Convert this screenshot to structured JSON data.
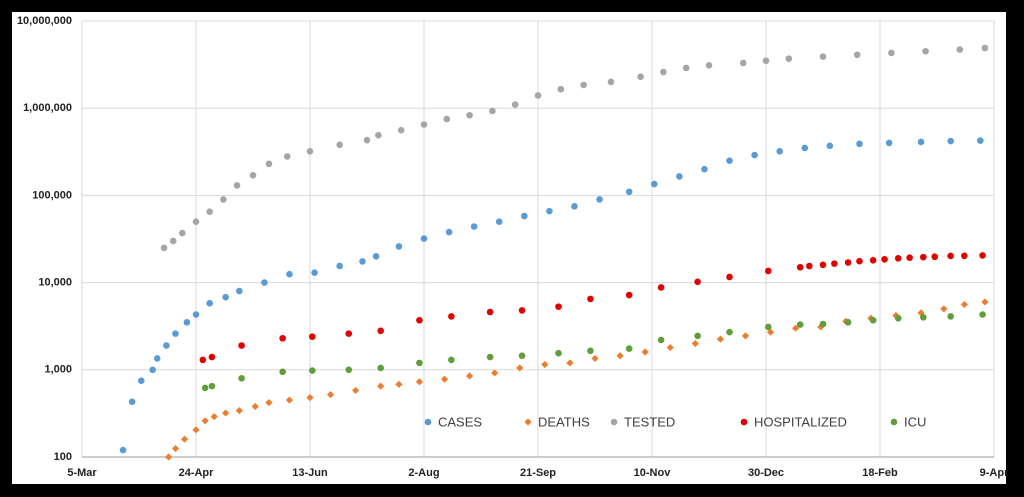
{
  "chart_data": {
    "type": "scatter",
    "log_y": true,
    "grid": true,
    "legend": "bottom",
    "xlim": [
      0,
      400
    ],
    "xticks": [
      {
        "value": 0,
        "label": "5-Mar"
      },
      {
        "value": 50,
        "label": "24-Apr"
      },
      {
        "value": 100,
        "label": "13-Jun"
      },
      {
        "value": 150,
        "label": "2-Aug"
      },
      {
        "value": 200,
        "label": "21-Sep"
      },
      {
        "value": 250,
        "label": "10-Nov"
      },
      {
        "value": 300,
        "label": "30-Dec"
      },
      {
        "value": 350,
        "label": "18-Feb"
      },
      {
        "value": 400,
        "label": "9-Apr"
      }
    ],
    "ylim": [
      100,
      10000000
    ],
    "yticks": [
      {
        "value": 100,
        "label": "100"
      },
      {
        "value": 1000,
        "label": "1,000"
      },
      {
        "value": 10000,
        "label": "10,000"
      },
      {
        "value": 100000,
        "label": "100,000"
      },
      {
        "value": 1000000,
        "label": "1,000,000"
      },
      {
        "value": 10000000,
        "label": "10,000,000"
      }
    ],
    "series": [
      {
        "name": "CASES",
        "color": "#5b9bd5",
        "marker": "circle",
        "x": [
          18,
          22,
          26,
          31,
          33,
          37,
          41,
          46,
          50,
          56,
          63,
          69,
          80,
          91,
          102,
          113,
          123,
          129,
          139,
          150,
          161,
          172,
          183,
          194,
          205,
          216,
          227,
          240,
          251,
          262,
          273,
          284,
          295,
          306,
          317,
          328,
          341,
          354,
          368,
          381,
          394
        ],
        "values": [
          120,
          430,
          750,
          1000,
          1350,
          1900,
          2600,
          3500,
          4300,
          5800,
          6800,
          8000,
          10000,
          12500,
          13000,
          15500,
          17500,
          20000,
          26000,
          32000,
          38000,
          44000,
          50000,
          58000,
          66000,
          75000,
          90000,
          110000,
          135000,
          165000,
          200000,
          250000,
          290000,
          320000,
          350000,
          370000,
          390000,
          400000,
          410000,
          420000,
          425000
        ]
      },
      {
        "name": "DEATHS",
        "color": "#ed7d31",
        "marker": "diamond",
        "x": [
          38,
          41,
          45,
          50,
          54,
          58,
          63,
          69,
          76,
          82,
          91,
          100,
          109,
          120,
          131,
          139,
          148,
          159,
          170,
          181,
          192,
          203,
          214,
          225,
          236,
          247,
          258,
          269,
          280,
          291,
          302,
          313,
          324,
          335,
          346,
          357,
          368,
          378,
          387,
          396
        ],
        "values": [
          100,
          125,
          160,
          205,
          260,
          290,
          320,
          340,
          380,
          420,
          450,
          480,
          520,
          580,
          650,
          680,
          730,
          780,
          850,
          920,
          1050,
          1150,
          1200,
          1350,
          1450,
          1600,
          1800,
          2000,
          2250,
          2450,
          2700,
          3000,
          3100,
          3600,
          3900,
          4200,
          4500,
          5000,
          5600,
          6000
        ]
      },
      {
        "name": "TESTED",
        "color": "#a5a5a5",
        "marker": "circle",
        "x": [
          36,
          40,
          44,
          50,
          56,
          62,
          68,
          75,
          82,
          90,
          100,
          113,
          125,
          130,
          140,
          150,
          160,
          170,
          180,
          190,
          200,
          210,
          220,
          232,
          245,
          255,
          265,
          275,
          290,
          300,
          310,
          325,
          340,
          355,
          370,
          385,
          396
        ],
        "values": [
          25000,
          30000,
          37000,
          50000,
          65000,
          90000,
          130000,
          170000,
          230000,
          280000,
          320000,
          380000,
          430000,
          490000,
          560000,
          650000,
          750000,
          830000,
          930000,
          1100000,
          1400000,
          1650000,
          1850000,
          2000000,
          2300000,
          2600000,
          2900000,
          3100000,
          3300000,
          3500000,
          3700000,
          3900000,
          4100000,
          4300000,
          4500000,
          4700000,
          4900000
        ]
      },
      {
        "name": "HOSPITALIZED",
        "color": "#e00000",
        "marker": "circle",
        "x": [
          53,
          57,
          70,
          88,
          101,
          117,
          131,
          148,
          162,
          179,
          193,
          209,
          223,
          240,
          254,
          270,
          284,
          301,
          315,
          319,
          325,
          330,
          336,
          341,
          347,
          352,
          358,
          363,
          369,
          374,
          381,
          387,
          395
        ],
        "values": [
          1300,
          1400,
          1900,
          2300,
          2400,
          2600,
          2800,
          3700,
          4100,
          4600,
          4800,
          5300,
          6500,
          7200,
          8800,
          10200,
          11600,
          13600,
          15000,
          15500,
          16000,
          16500,
          17000,
          17600,
          18000,
          18500,
          19000,
          19300,
          19600,
          19800,
          20200,
          20300,
          20500
        ]
      },
      {
        "name": "ICU",
        "color": "#5f9e3a",
        "marker": "circle",
        "x": [
          54,
          57,
          70,
          88,
          101,
          117,
          131,
          148,
          162,
          179,
          193,
          209,
          223,
          240,
          254,
          270,
          284,
          301,
          315,
          325,
          336,
          347,
          358,
          369,
          381,
          395
        ],
        "values": [
          620,
          650,
          800,
          950,
          980,
          1000,
          1050,
          1200,
          1300,
          1400,
          1450,
          1550,
          1650,
          1750,
          2200,
          2450,
          2700,
          3100,
          3300,
          3350,
          3500,
          3700,
          3900,
          4000,
          4100,
          4300
        ]
      }
    ]
  }
}
